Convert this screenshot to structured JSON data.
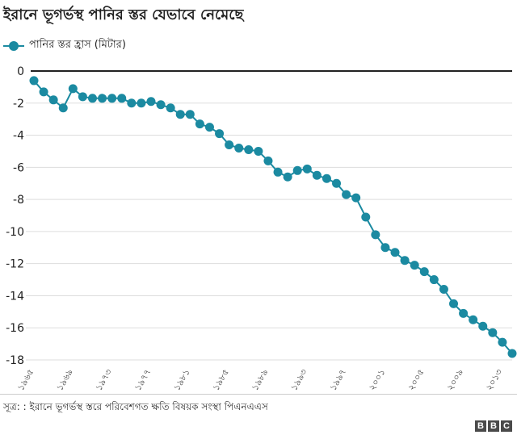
{
  "chart_data": {
    "type": "line",
    "title": "ইরানে ভূগর্ভস্থ পানির স্তর যেভাবে নেমেছে",
    "legend": "পানির স্তর হ্রাস (মিটার)",
    "ylim": [
      -18,
      0
    ],
    "yticks": [
      "0",
      "-2",
      "-4",
      "-6",
      "-8",
      "-10",
      "-12",
      "-14",
      "-16",
      "-18"
    ],
    "xticks": [
      "১৯৬৫",
      "১৯৬৯",
      "১৯৭৩",
      "১৯৭৭",
      "১৯৮১",
      "১৯৮৫",
      "১৯৮৯",
      "১৯৯৩",
      "১৯৯৭",
      "২০০১",
      "২০০৫",
      "২০০৯",
      "২০১৩"
    ],
    "x": [
      1965,
      1966,
      1967,
      1968,
      1969,
      1970,
      1971,
      1972,
      1973,
      1974,
      1975,
      1976,
      1977,
      1978,
      1979,
      1980,
      1981,
      1982,
      1983,
      1984,
      1985,
      1986,
      1987,
      1988,
      1989,
      1990,
      1991,
      1992,
      1993,
      1994,
      1995,
      1996,
      1997,
      1998,
      1999,
      2000,
      2001,
      2002,
      2003,
      2004,
      2005,
      2006,
      2007,
      2008,
      2009,
      2010,
      2011,
      2012,
      2013,
      2014
    ],
    "series": [
      {
        "name": "পানির স্তর হ্রাস (মিটার)",
        "color": "#1b8aa1",
        "values": [
          -0.6,
          -1.3,
          -1.8,
          -2.3,
          -1.1,
          -1.6,
          -1.7,
          -1.7,
          -1.7,
          -1.7,
          -2.0,
          -2.0,
          -1.9,
          -2.1,
          -2.3,
          -2.7,
          -2.7,
          -3.3,
          -3.5,
          -3.9,
          -4.6,
          -4.8,
          -4.9,
          -5.0,
          -5.6,
          -6.3,
          -6.6,
          -6.2,
          -6.1,
          -6.5,
          -6.7,
          -7.0,
          -7.7,
          -7.9,
          -9.1,
          -10.2,
          -11.0,
          -11.3,
          -11.8,
          -12.1,
          -12.5,
          -13.0,
          -13.6,
          -14.5,
          -15.1,
          -15.5,
          -15.9,
          -16.3,
          -16.9,
          -17.6
        ]
      }
    ]
  },
  "source": "সূত্র: : ইরানে ভূগর্ভস্থ স্তরে পরিবেশগত ক্ষতি বিষয়ক সংস্থা পিএনএএস",
  "logo": [
    "B",
    "B",
    "C"
  ]
}
